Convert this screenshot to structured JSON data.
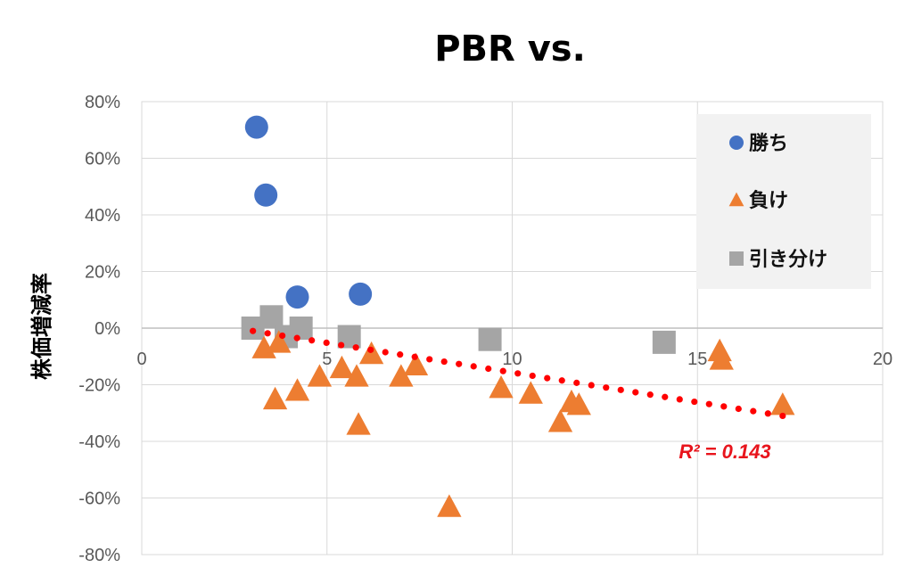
{
  "chart_data": {
    "type": "scatter",
    "title": "PBR vs.",
    "xlabel": "",
    "ylabel": "株価増減率",
    "xlim": [
      0,
      20
    ],
    "ylim": [
      -80,
      80
    ],
    "x_ticks": [
      "0",
      "5",
      "10",
      "15",
      "20"
    ],
    "y_ticks": [
      "80%",
      "60%",
      "40%",
      "20%",
      "0%",
      "-20%",
      "-40%",
      "-60%",
      "-80%"
    ],
    "grid": true,
    "legend_position": "top-right",
    "series": [
      {
        "name": "勝ち",
        "marker": "circle",
        "color": "#4472c4",
        "points": [
          [
            3.1,
            71
          ],
          [
            3.35,
            47
          ],
          [
            4.2,
            11
          ],
          [
            5.9,
            12
          ]
        ]
      },
      {
        "name": "負け",
        "marker": "triangle",
        "color": "#ed7d31",
        "points": [
          [
            3.3,
            -7
          ],
          [
            3.7,
            -5
          ],
          [
            3.6,
            -25
          ],
          [
            4.2,
            -22
          ],
          [
            4.8,
            -17
          ],
          [
            5.4,
            -14
          ],
          [
            5.8,
            -17
          ],
          [
            5.85,
            -34
          ],
          [
            6.2,
            -9
          ],
          [
            7.0,
            -17
          ],
          [
            7.4,
            -13
          ],
          [
            8.3,
            -63
          ],
          [
            9.7,
            -21
          ],
          [
            10.5,
            -23
          ],
          [
            11.3,
            -33
          ],
          [
            11.6,
            -26
          ],
          [
            11.8,
            -27
          ],
          [
            15.6,
            -8
          ],
          [
            15.65,
            -11
          ],
          [
            17.3,
            -27
          ]
        ]
      },
      {
        "name": "引き分け",
        "marker": "square",
        "color": "#a5a5a5",
        "points": [
          [
            3.0,
            0
          ],
          [
            3.5,
            4
          ],
          [
            3.9,
            -3
          ],
          [
            4.3,
            0
          ],
          [
            5.6,
            -3
          ],
          [
            9.4,
            -4
          ],
          [
            14.1,
            -5
          ]
        ]
      }
    ],
    "trendline": {
      "type": "linear",
      "color": "#ff0000",
      "style": "dotted",
      "x_range": [
        3.0,
        17.3
      ],
      "y_start": -1,
      "y_end": -31,
      "r2_label": "R² = 0.143"
    }
  }
}
